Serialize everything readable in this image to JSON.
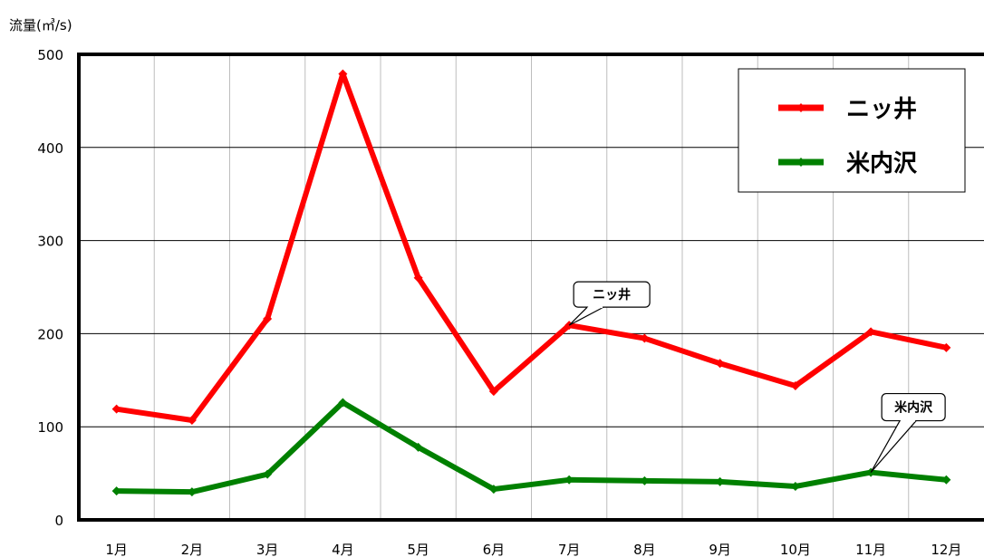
{
  "chart_data": {
    "type": "line",
    "ylabel": "流量(㎥/s)",
    "xlabel": "",
    "categories": [
      "1月",
      "2月",
      "3月",
      "4月",
      "5月",
      "6月",
      "7月",
      "8月",
      "9月",
      "10月",
      "11月",
      "12月"
    ],
    "ylim": [
      0,
      500
    ],
    "yticks": [
      0,
      100,
      200,
      300,
      400,
      500
    ],
    "grid": true,
    "legend_position": "top-right",
    "series": [
      {
        "name": "ニッ井",
        "color": "#ff0000",
        "values": [
          119,
          107,
          216,
          479,
          260,
          138,
          209,
          195,
          168,
          144,
          202,
          185
        ]
      },
      {
        "name": "米内沢",
        "color": "#008000",
        "values": [
          31,
          30,
          49,
          126,
          78,
          33,
          43,
          42,
          41,
          36,
          51,
          43
        ]
      }
    ],
    "annotations": [
      {
        "text": "ニッ井",
        "series": 0,
        "category": "7月"
      },
      {
        "text": "米内沢",
        "series": 1,
        "category": "11月"
      }
    ]
  }
}
